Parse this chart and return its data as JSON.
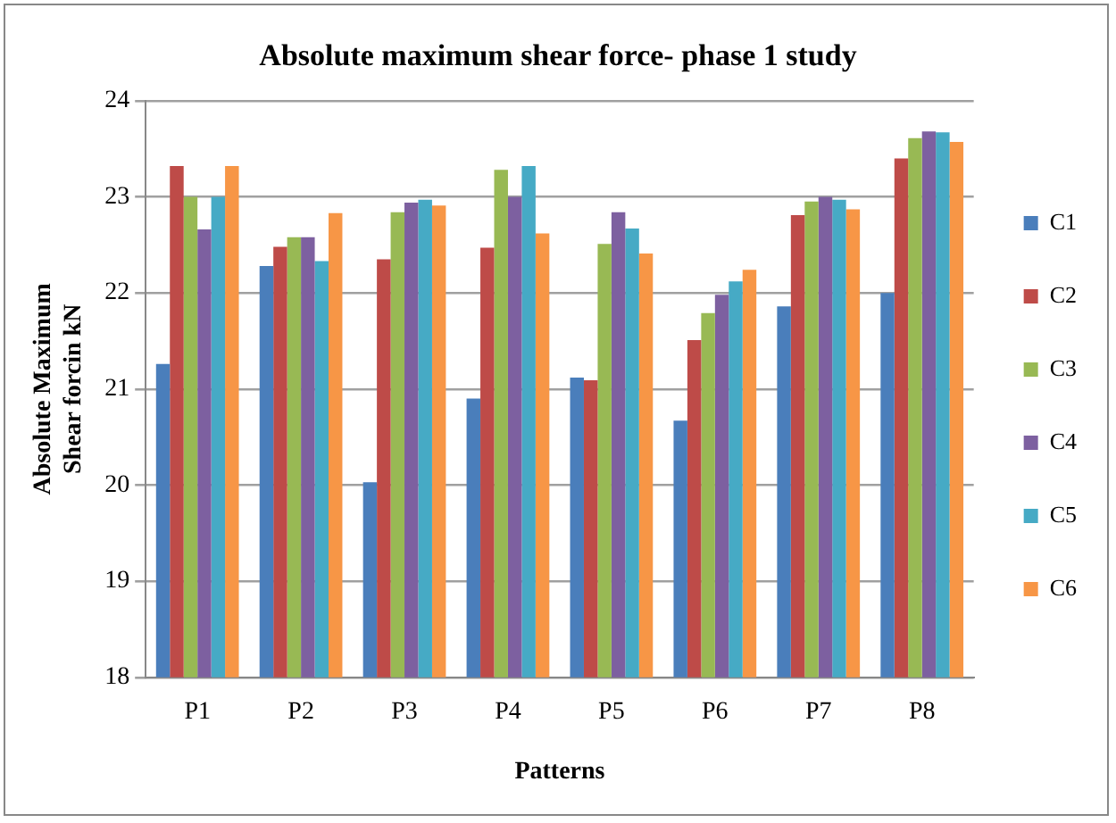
{
  "chart_data": {
    "type": "bar",
    "title": "Absolute maximum shear force- phase 1 study",
    "xlabel": "Patterns",
    "ylabel": "Absolute Maximum Shear forcin kN",
    "categories": [
      "P1",
      "P2",
      "P3",
      "P4",
      "P5",
      "P6",
      "P7",
      "P8"
    ],
    "series": [
      {
        "name": "C1",
        "color": "#4a7ebb",
        "values": [
          21.26,
          22.28,
          20.03,
          20.9,
          21.12,
          20.67,
          21.86,
          22.0
        ]
      },
      {
        "name": "C2",
        "color": "#be4b48",
        "values": [
          23.32,
          22.48,
          22.35,
          22.47,
          21.09,
          21.51,
          22.81,
          23.4
        ]
      },
      {
        "name": "C3",
        "color": "#98b954",
        "values": [
          23.0,
          22.58,
          22.84,
          23.28,
          22.51,
          21.79,
          22.95,
          23.61
        ]
      },
      {
        "name": "C4",
        "color": "#7d60a0",
        "values": [
          22.66,
          22.58,
          22.94,
          23.0,
          22.84,
          21.98,
          23.0,
          23.68
        ]
      },
      {
        "name": "C5",
        "color": "#46aac5",
        "values": [
          23.0,
          22.33,
          22.97,
          23.32,
          22.67,
          22.12,
          22.97,
          23.67
        ]
      },
      {
        "name": "C6",
        "color": "#f79646",
        "values": [
          23.32,
          22.83,
          22.91,
          22.62,
          22.41,
          22.24,
          22.87,
          23.57
        ]
      }
    ],
    "ylim": [
      18,
      24
    ],
    "yticks": [
      18,
      19,
      20,
      21,
      22,
      23,
      24
    ],
    "grid": "y",
    "legend": "right"
  }
}
